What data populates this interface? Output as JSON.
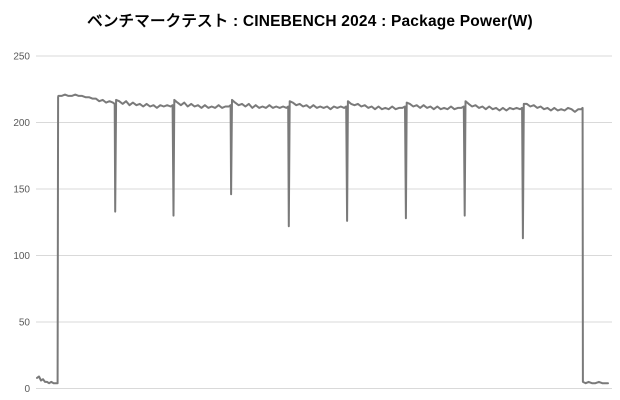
{
  "window": {
    "background_color": "#ffffff"
  },
  "chart_data": {
    "type": "line",
    "title": "ベンチマークテスト : CINEBENCH 2024 : Package Power(W)",
    "xlabel": "",
    "ylabel": "",
    "ylim": [
      0,
      250
    ],
    "yticks": [
      0,
      50,
      100,
      150,
      200,
      250
    ],
    "x_tick_labels": [],
    "grid": true,
    "legend": "none",
    "colors": {
      "line": "#7a7a7a",
      "gridline": "#d9d9d9",
      "tick_label": "#595959",
      "title": "#000000",
      "background": "#ffffff"
    },
    "series": [
      {
        "name": "Package Power(W)",
        "x_unit_note": "elapsed time, unlabeled axis (0-100% of run)",
        "points": [
          [
            0,
            8
          ],
          [
            0.35,
            9
          ],
          [
            0.7,
            6
          ],
          [
            1.05,
            7
          ],
          [
            1.4,
            5
          ],
          [
            1.75,
            5
          ],
          [
            2.1,
            4
          ],
          [
            2.5,
            5
          ],
          [
            2.9,
            4
          ],
          [
            3.3,
            4
          ],
          [
            3.6,
            4
          ],
          [
            3.7,
            219
          ],
          [
            3.75,
            220
          ],
          [
            4.3,
            220
          ],
          [
            4.9,
            221
          ],
          [
            5.5,
            220
          ],
          [
            6.1,
            220
          ],
          [
            6.7,
            221
          ],
          [
            7.3,
            220
          ],
          [
            7.9,
            220
          ],
          [
            8.5,
            219
          ],
          [
            9.1,
            219
          ],
          [
            9.7,
            218
          ],
          [
            10.3,
            218
          ],
          [
            10.9,
            216
          ],
          [
            11.5,
            217
          ],
          [
            12.1,
            215
          ],
          [
            12.7,
            216
          ],
          [
            13.3,
            215
          ],
          [
            13.6,
            214
          ],
          [
            13.7,
            133
          ],
          [
            13.85,
            217
          ],
          [
            14.4,
            216
          ],
          [
            15.0,
            214
          ],
          [
            15.6,
            216
          ],
          [
            16.2,
            213
          ],
          [
            16.8,
            215
          ],
          [
            17.4,
            213
          ],
          [
            18.0,
            214
          ],
          [
            18.6,
            212
          ],
          [
            19.2,
            214
          ],
          [
            19.8,
            212
          ],
          [
            20.4,
            213
          ],
          [
            21.0,
            211
          ],
          [
            21.6,
            213
          ],
          [
            22.2,
            212
          ],
          [
            22.8,
            213
          ],
          [
            23.4,
            212
          ],
          [
            23.75,
            213
          ],
          [
            23.9,
            130
          ],
          [
            24.05,
            217
          ],
          [
            24.6,
            215
          ],
          [
            25.2,
            213
          ],
          [
            25.8,
            215
          ],
          [
            26.4,
            212
          ],
          [
            27.0,
            214
          ],
          [
            27.6,
            212
          ],
          [
            28.2,
            213
          ],
          [
            28.8,
            211
          ],
          [
            29.4,
            213
          ],
          [
            30.0,
            211
          ],
          [
            30.6,
            212
          ],
          [
            31.2,
            211
          ],
          [
            31.8,
            213
          ],
          [
            32.4,
            211
          ],
          [
            33.0,
            212
          ],
          [
            33.6,
            212
          ],
          [
            33.9,
            213
          ],
          [
            34.0,
            146
          ],
          [
            34.15,
            217
          ],
          [
            34.7,
            215
          ],
          [
            35.3,
            213
          ],
          [
            35.9,
            214
          ],
          [
            36.5,
            212
          ],
          [
            37.1,
            214
          ],
          [
            37.7,
            211
          ],
          [
            38.3,
            213
          ],
          [
            38.9,
            211
          ],
          [
            39.5,
            212
          ],
          [
            40.1,
            211
          ],
          [
            40.7,
            213
          ],
          [
            41.3,
            211
          ],
          [
            41.9,
            212
          ],
          [
            42.5,
            211
          ],
          [
            43.1,
            212
          ],
          [
            43.7,
            211
          ],
          [
            44.0,
            212
          ],
          [
            44.1,
            122
          ],
          [
            44.25,
            216
          ],
          [
            44.8,
            215
          ],
          [
            45.4,
            213
          ],
          [
            46.0,
            214
          ],
          [
            46.6,
            212
          ],
          [
            47.2,
            213
          ],
          [
            47.8,
            211
          ],
          [
            48.4,
            213
          ],
          [
            49.0,
            211
          ],
          [
            49.6,
            212
          ],
          [
            50.2,
            211
          ],
          [
            50.8,
            212
          ],
          [
            51.4,
            210
          ],
          [
            52.0,
            212
          ],
          [
            52.6,
            211
          ],
          [
            53.2,
            212
          ],
          [
            53.8,
            211
          ],
          [
            54.15,
            212
          ],
          [
            54.3,
            126
          ],
          [
            54.45,
            216
          ],
          [
            55.0,
            214
          ],
          [
            55.6,
            213
          ],
          [
            56.2,
            214
          ],
          [
            56.8,
            212
          ],
          [
            57.4,
            213
          ],
          [
            58.0,
            211
          ],
          [
            58.6,
            212
          ],
          [
            59.2,
            210
          ],
          [
            59.8,
            212
          ],
          [
            60.4,
            210
          ],
          [
            61.0,
            211
          ],
          [
            61.6,
            210
          ],
          [
            62.2,
            212
          ],
          [
            62.8,
            210
          ],
          [
            63.4,
            211
          ],
          [
            64.0,
            211
          ],
          [
            64.45,
            212
          ],
          [
            64.6,
            128
          ],
          [
            64.75,
            215
          ],
          [
            65.3,
            214
          ],
          [
            65.9,
            212
          ],
          [
            66.5,
            213
          ],
          [
            67.1,
            211
          ],
          [
            67.7,
            213
          ],
          [
            68.3,
            211
          ],
          [
            68.9,
            212
          ],
          [
            69.5,
            210
          ],
          [
            70.1,
            212
          ],
          [
            70.7,
            210
          ],
          [
            71.3,
            211
          ],
          [
            71.9,
            210
          ],
          [
            72.5,
            212
          ],
          [
            73.1,
            210
          ],
          [
            73.7,
            211
          ],
          [
            74.3,
            211
          ],
          [
            74.75,
            212
          ],
          [
            74.9,
            130
          ],
          [
            75.05,
            216
          ],
          [
            75.6,
            214
          ],
          [
            76.2,
            212
          ],
          [
            76.8,
            213
          ],
          [
            77.4,
            211
          ],
          [
            78.0,
            212
          ],
          [
            78.6,
            210
          ],
          [
            79.2,
            212
          ],
          [
            79.8,
            210
          ],
          [
            80.4,
            211
          ],
          [
            81.0,
            209
          ],
          [
            81.6,
            211
          ],
          [
            82.2,
            209
          ],
          [
            82.8,
            211
          ],
          [
            83.4,
            210
          ],
          [
            84.0,
            211
          ],
          [
            84.6,
            210
          ],
          [
            84.95,
            211
          ],
          [
            85.1,
            113
          ],
          [
            85.25,
            214
          ],
          [
            85.8,
            214
          ],
          [
            86.4,
            212
          ],
          [
            87.0,
            213
          ],
          [
            87.6,
            211
          ],
          [
            88.2,
            212
          ],
          [
            88.8,
            210
          ],
          [
            89.4,
            211
          ],
          [
            90.0,
            209
          ],
          [
            90.6,
            211
          ],
          [
            91.2,
            209
          ],
          [
            91.8,
            210
          ],
          [
            92.4,
            209
          ],
          [
            93.0,
            211
          ],
          [
            93.6,
            210
          ],
          [
            94.2,
            208
          ],
          [
            94.8,
            210
          ],
          [
            95.3,
            210
          ],
          [
            95.55,
            211
          ],
          [
            95.6,
            5
          ],
          [
            96.1,
            4
          ],
          [
            96.6,
            5
          ],
          [
            97.2,
            4
          ],
          [
            97.8,
            4
          ],
          [
            98.4,
            5
          ],
          [
            99.0,
            4
          ],
          [
            99.5,
            4
          ],
          [
            100,
            4
          ]
        ]
      }
    ]
  }
}
